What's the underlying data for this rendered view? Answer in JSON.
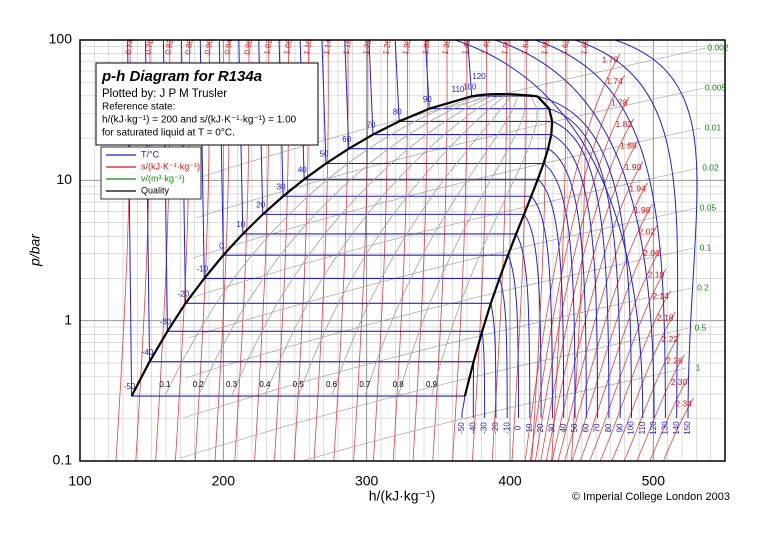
{
  "chart_data": {
    "type": "line",
    "title": "p-h Diagram for R134a",
    "subtitle": "Plotted by: J P M Trusler",
    "reference": [
      "Reference state:",
      "h/(kJ·kg⁻¹) = 200 and s/(kJ·K⁻¹·kg⁻¹) = 1.00",
      "for saturated liquid at T = 0°C."
    ],
    "x_label": "h/(kJ·kg⁻¹)",
    "y_label": "p/bar",
    "xlim": [
      100,
      550
    ],
    "xticks": [
      100,
      200,
      300,
      400,
      500
    ],
    "ylim": [
      0.1,
      100
    ],
    "yticks": [
      0.1,
      1,
      10,
      100
    ],
    "log_y": true,
    "grid": true,
    "legend": [
      {
        "name": "T/°C",
        "color": "#2222cc"
      },
      {
        "name": "s/(kJ·K⁻¹·kg⁻¹)",
        "color": "#dd1111"
      },
      {
        "name": "v/(m³·kg⁻¹)",
        "color": "#118811"
      },
      {
        "name": "Quality",
        "color": "#000000"
      }
    ],
    "saturation": {
      "temperatures": [
        -50,
        -40,
        -30,
        -20,
        -10,
        0,
        10,
        20,
        30,
        40,
        50,
        60,
        70,
        80,
        90,
        100
      ],
      "p": [
        0.29,
        0.51,
        0.84,
        1.33,
        2.0,
        2.93,
        4.15,
        5.72,
        7.7,
        10.17,
        13.18,
        16.8,
        21.2,
        26.3,
        32.4,
        39.7
      ],
      "h_liquid": [
        136,
        148.5,
        161,
        173.6,
        186.7,
        200,
        213.6,
        227.5,
        241.7,
        256.4,
        271.6,
        287.5,
        304.4,
        322.7,
        343.7,
        373.3
      ],
      "h_vapor": [
        368.5,
        374.6,
        380.6,
        386.6,
        392.7,
        398.6,
        404.3,
        409.8,
        414.8,
        419.4,
        423.4,
        426.6,
        428.8,
        429.4,
        427.3,
        419.1
      ]
    },
    "critical": {
      "h": 390,
      "p": 40.6
    },
    "supercritical_temperatures": [
      110,
      120
    ],
    "quality": [
      0.1,
      0.2,
      0.3,
      0.4,
      0.5,
      0.6,
      0.7,
      0.8,
      0.9
    ],
    "isotherm_labels": [
      -50,
      -40,
      -30,
      -20,
      -10,
      0,
      10,
      20,
      30,
      40,
      50,
      60,
      70,
      80,
      90,
      100,
      110,
      120,
      130,
      140,
      150
    ],
    "entropy_labels": [
      "0.74",
      "0.78",
      "0.82",
      "0.86",
      "0.90",
      "0.94",
      "0.98",
      "1.02",
      "1.06",
      "1.10",
      "1.14",
      "1.18",
      "1.22",
      "1.26",
      "1.30",
      "1.34",
      "1.38",
      "1.42",
      "1.46",
      "1.50",
      "1.54",
      "1.58",
      "1.62",
      "1.66",
      "1.70",
      "1.74",
      "1.78",
      "1.82",
      "1.86",
      "1.90",
      "1.94",
      "1.98",
      "2.02",
      "2.06",
      "2.10",
      "2.14",
      "2.18",
      "2.22",
      "2.26",
      "2.30",
      "2.34"
    ],
    "volume_labels": [
      "0.002",
      "0.005",
      "0.01",
      "0.02",
      "0.05",
      "0.1",
      "0.2",
      "0.5",
      "1"
    ],
    "copyright": "© Imperial College London 2003"
  }
}
